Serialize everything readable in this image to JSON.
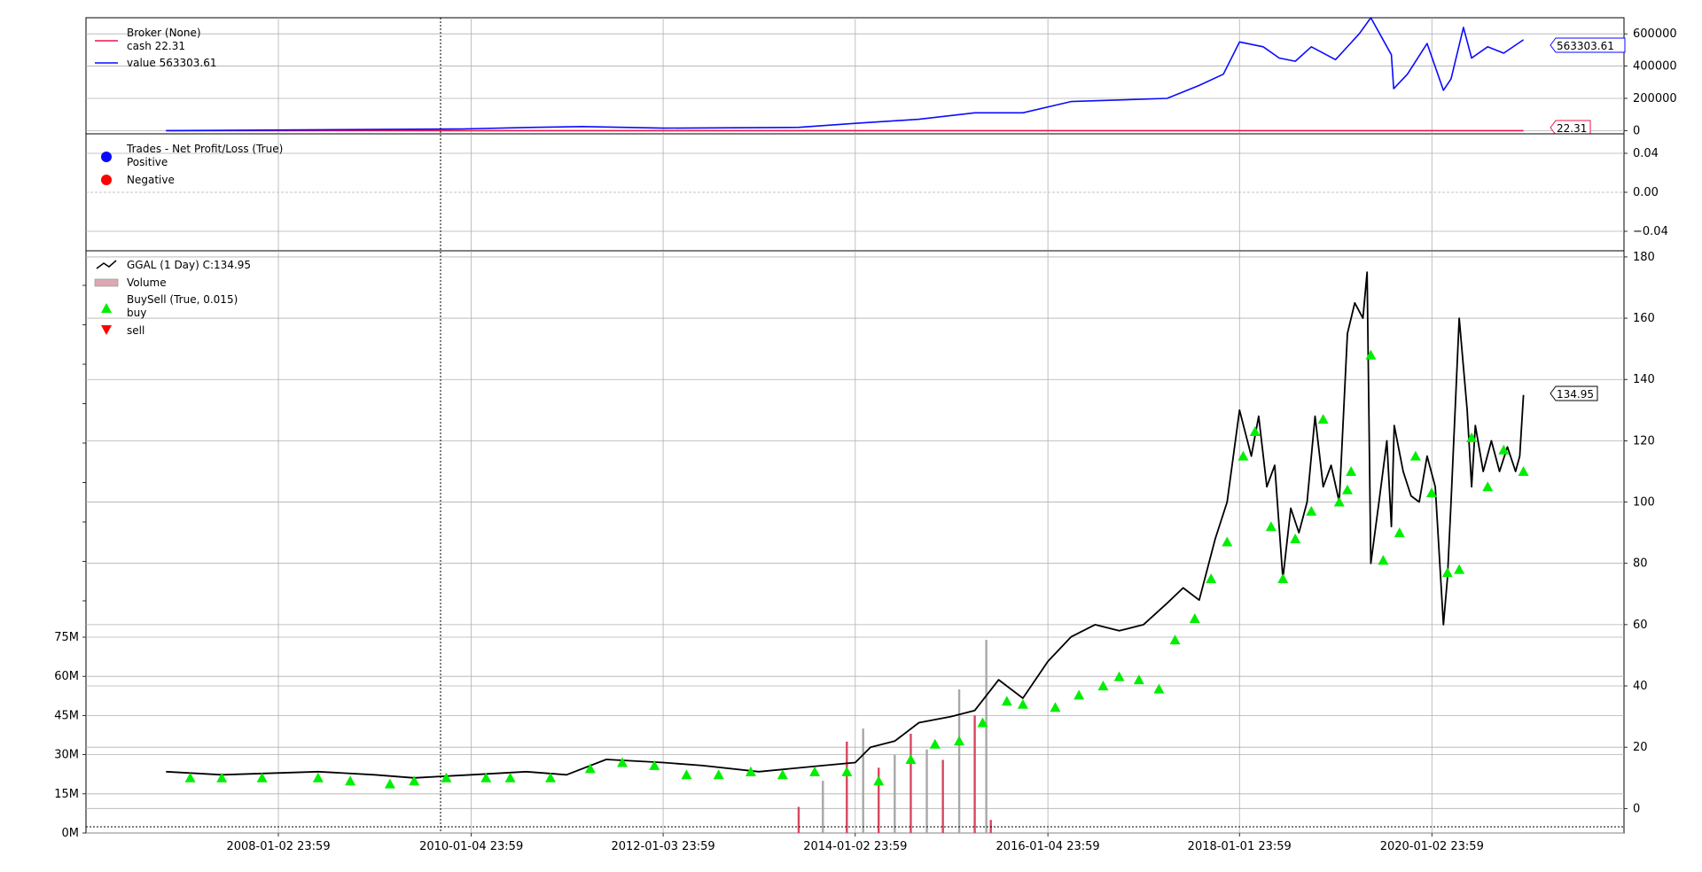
{
  "chart_data": [
    {
      "type": "line",
      "panel": "broker",
      "legend": {
        "title": "Broker (None)",
        "cash_label": "cash 22.31",
        "value_label": "value 563303.61"
      },
      "y_ticks": [
        "600000",
        "400000",
        "200000",
        "0"
      ],
      "ylim": [
        -20000,
        700000
      ],
      "last_value_tag": "563303.61",
      "last_cash_tag": "22.31",
      "colors": {
        "cash": "#e8174a",
        "value": "#0a0aff"
      },
      "series": [
        {
          "name": "cash",
          "x": [
            "2006-11-01",
            "2020-12-15"
          ],
          "y": [
            22.31,
            22.31
          ]
        },
        {
          "name": "value",
          "x": [
            "2006-11-01",
            "2009-12-01",
            "2010-09-01",
            "2011-03-01",
            "2012-01-03",
            "2013-06-01",
            "2014-01-02",
            "2014-09-01",
            "2015-04-01",
            "2015-10-01",
            "2016-04-01",
            "2016-10-01",
            "2017-04-01",
            "2017-08-01",
            "2017-11-01",
            "2018-01-01",
            "2018-04-01",
            "2018-06-01",
            "2018-08-01",
            "2018-10-01",
            "2019-01-01",
            "2019-04-01",
            "2019-05-15",
            "2019-08-01",
            "2019-08-10",
            "2019-10-01",
            "2019-12-15",
            "2020-02-15",
            "2020-03-15",
            "2020-05-01",
            "2020-06-01",
            "2020-08-01",
            "2020-10-01",
            "2020-12-15"
          ],
          "y": [
            0,
            10000,
            20000,
            25000,
            15000,
            20000,
            45000,
            70000,
            110000,
            110000,
            180000,
            190000,
            200000,
            280000,
            350000,
            550000,
            520000,
            450000,
            430000,
            520000,
            440000,
            600000,
            700000,
            470000,
            260000,
            350000,
            540000,
            250000,
            320000,
            640000,
            450000,
            520000,
            480000,
            563303.61
          ]
        }
      ]
    },
    {
      "type": "scatter",
      "panel": "trades",
      "legend": {
        "title": "Trades - Net Profit/Loss (True)",
        "positive": "Positive",
        "negative": "Negative"
      },
      "y_ticks": [
        "0.04",
        "0.00",
        "−0.04"
      ],
      "ylim": [
        -0.06,
        0.06
      ],
      "colors": {
        "positive": "#0a0aff",
        "negative": "#ff0000"
      },
      "series": []
    },
    {
      "type": "line",
      "panel": "price",
      "legend": {
        "price": "GGAL (1 Day) C:134.95",
        "volume": "Volume",
        "buysell": "BuySell (True, 0.015)",
        "buy": "buy",
        "sell": "sell"
      },
      "x_ticks": [
        "2008-01-02 23:59",
        "2010-01-04 23:59",
        "2012-01-03 23:59",
        "2014-01-02 23:59",
        "2016-01-04 23:59",
        "2018-01-01 23:59",
        "2020-01-02 23:59"
      ],
      "y_ticks": [
        "180",
        "160",
        "140",
        "120",
        "100",
        "80",
        "60",
        "40",
        "20",
        "0"
      ],
      "volume_ticks": [
        "75M",
        "60M",
        "45M",
        "30M",
        "15M",
        "0M"
      ],
      "ylim": [
        -8,
        182
      ],
      "volume_lim": [
        0,
        75000000
      ],
      "last_price_tag": "134.95",
      "colors": {
        "price": "#000000",
        "buy": "#00ee00",
        "sell": "#ff0000",
        "volume_up": "#d8475f",
        "volume_down": "#a8a8a8"
      },
      "series": [
        {
          "name": "GGAL",
          "x": [
            "2006-11-01",
            "2007-06-01",
            "2008-06-01",
            "2009-01-01",
            "2009-06-01",
            "2010-01-04",
            "2010-08-01",
            "2011-01-01",
            "2011-06-01",
            "2012-01-03",
            "2012-06-01",
            "2013-01-01",
            "2013-09-01",
            "2014-01-02",
            "2014-03-01",
            "2014-06-01",
            "2014-09-01",
            "2015-01-01",
            "2015-04-01",
            "2015-07-01",
            "2015-10-01",
            "2016-01-04",
            "2016-04-01",
            "2016-07-01",
            "2016-10-01",
            "2017-01-01",
            "2017-04-01",
            "2017-06-01",
            "2017-08-01",
            "2017-10-01",
            "2017-11-15",
            "2018-01-01",
            "2018-02-15",
            "2018-03-15",
            "2018-04-15",
            "2018-05-15",
            "2018-06-15",
            "2018-07-15",
            "2018-08-15",
            "2018-09-15",
            "2018-10-15",
            "2018-11-15",
            "2018-12-15",
            "2019-01-15",
            "2019-02-15",
            "2019-03-15",
            "2019-04-15",
            "2019-05-01",
            "2019-05-15",
            "2019-06-15",
            "2019-07-15",
            "2019-08-01",
            "2019-08-12",
            "2019-09-15",
            "2019-10-15",
            "2019-11-15",
            "2019-12-15",
            "2020-01-15",
            "2020-02-15",
            "2020-03-01",
            "2020-03-15",
            "2020-04-15",
            "2020-05-15",
            "2020-06-01",
            "2020-06-15",
            "2020-07-15",
            "2020-08-15",
            "2020-09-15",
            "2020-10-15",
            "2020-11-15",
            "2020-12-01",
            "2020-12-15"
          ],
          "y": [
            12,
            11,
            12,
            11,
            10,
            11,
            12,
            11,
            16,
            15,
            14,
            12,
            14,
            15,
            20,
            22,
            28,
            30,
            32,
            42,
            36,
            48,
            56,
            60,
            58,
            60,
            67,
            72,
            68,
            88,
            100,
            130,
            115,
            128,
            105,
            112,
            75,
            98,
            90,
            100,
            128,
            105,
            112,
            100,
            155,
            165,
            160,
            175,
            80,
            100,
            120,
            92,
            125,
            110,
            102,
            100,
            115,
            105,
            60,
            75,
            100,
            160,
            130,
            105,
            125,
            110,
            120,
            110,
            118,
            110,
            115,
            134.95
          ]
        },
        {
          "name": "buy",
          "x": [
            "2007-02-01",
            "2007-06-01",
            "2007-11-01",
            "2008-06-01",
            "2008-10-01",
            "2009-03-01",
            "2009-06-01",
            "2009-10-01",
            "2010-03-01",
            "2010-06-01",
            "2010-11-01",
            "2011-04-01",
            "2011-08-01",
            "2011-12-01",
            "2012-04-01",
            "2012-08-01",
            "2012-12-01",
            "2013-04-01",
            "2013-08-01",
            "2013-12-01",
            "2014-04-01",
            "2014-08-01",
            "2014-11-01",
            "2015-02-01",
            "2015-05-01",
            "2015-08-01",
            "2015-10-01",
            "2016-02-01",
            "2016-05-01",
            "2016-08-01",
            "2016-10-01",
            "2016-12-15",
            "2017-03-01",
            "2017-05-01",
            "2017-07-15",
            "2017-09-15",
            "2017-11-15",
            "2018-01-15",
            "2018-03-01",
            "2018-05-01",
            "2018-06-15",
            "2018-08-01",
            "2018-10-01",
            "2018-11-15",
            "2019-01-15",
            "2019-02-15",
            "2019-03-01",
            "2019-05-15",
            "2019-07-01",
            "2019-09-01",
            "2019-11-01",
            "2020-01-01",
            "2020-03-01",
            "2020-04-15",
            "2020-06-01",
            "2020-08-01",
            "2020-10-01",
            "2020-12-15"
          ],
          "y": [
            10,
            10,
            10,
            10,
            9,
            8,
            9,
            10,
            10,
            10,
            10,
            13,
            15,
            14,
            11,
            11,
            12,
            11,
            12,
            12,
            9,
            16,
            21,
            22,
            28,
            35,
            34,
            33,
            37,
            40,
            43,
            42,
            39,
            55,
            62,
            75,
            87,
            115,
            123,
            92,
            75,
            88,
            97,
            127,
            100,
            104,
            110,
            148,
            81,
            90,
            115,
            103,
            77,
            78,
            121,
            105,
            117,
            110
          ]
        }
      ],
      "volume": {
        "x": [
          "2013-06-01",
          "2013-09-01",
          "2013-12-01",
          "2014-02-01",
          "2014-04-01",
          "2014-06-01",
          "2014-08-01",
          "2014-10-01",
          "2014-12-01",
          "2015-02-01",
          "2015-04-01",
          "2015-05-15",
          "2015-06-01"
        ],
        "values": [
          10000000,
          20000000,
          35000000,
          40000000,
          25000000,
          30000000,
          38000000,
          32000000,
          28000000,
          55000000,
          45000000,
          74000000,
          5000000
        ]
      }
    }
  ]
}
